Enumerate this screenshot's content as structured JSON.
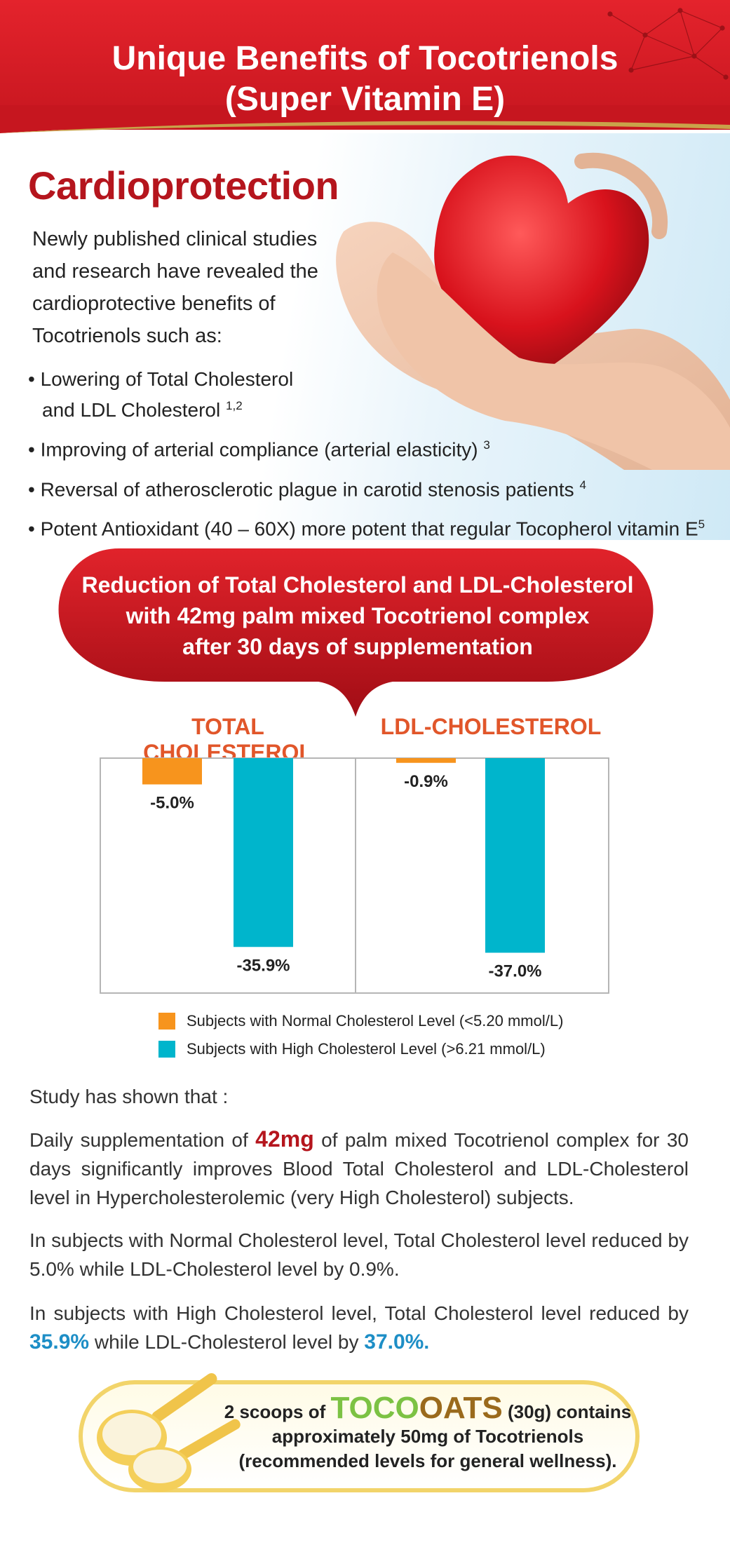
{
  "header": {
    "title_line1": "Unique Benefits of Tocotrienols",
    "title_line2": "(Super Vitamin E)"
  },
  "section": {
    "heading": "Cardioprotection",
    "intro": "Newly published clinical studies and research have revealed the cardioprotective benefits of Tocotrienols such as:",
    "bullets": [
      {
        "text": "• Lowering of Total Cholesterol",
        "text2": "and LDL Cholesterol",
        "ref": "1,2"
      },
      {
        "text": "• Improving of arterial compliance (arterial elasticity)",
        "ref": "3"
      },
      {
        "text": "• Reversal of atherosclerotic plague in carotid stenosis patients",
        "ref": "4"
      },
      {
        "text": "• Potent Antioxidant (40 – 60X) more potent that regular Tocopherol vitamin E",
        "ref": "5"
      }
    ]
  },
  "banner": {
    "line1": "Reduction of Total Cholesterol and LDL-Cholesterol",
    "line2": "with 42mg palm mixed Tocotrienol complex",
    "line3": "after 30 days of supplementation"
  },
  "chart_data": {
    "type": "bar",
    "panels": [
      {
        "title": "TOTAL CHOLESTEROL",
        "categories": [
          "Subjects with Normal Cholesterol Level (<5.20 mmol/L)",
          "Subjects with High Cholesterol Level (>6.21 mmol/L)"
        ],
        "values": [
          -5.0,
          -35.9
        ],
        "labels": [
          "-5.0%",
          "-35.9%"
        ]
      },
      {
        "title": "LDL-CHOLESTEROL",
        "categories": [
          "Subjects with Normal Cholesterol Level (<5.20 mmol/L)",
          "Subjects with High Cholesterol Level (>6.21 mmol/L)"
        ],
        "values": [
          -0.9,
          -37.0
        ],
        "labels": [
          "-0.9%",
          "-37.0%"
        ]
      }
    ],
    "series": [
      {
        "name": "Subjects with Normal Cholesterol Level (<5.20 mmol/L)",
        "color": "#f7941d"
      },
      {
        "name": "Subjects with High Cholesterol Level (>6.21 mmol/L)",
        "color": "#00b5cc"
      }
    ],
    "ylim": [
      -40,
      0
    ],
    "grid": false,
    "legend": "bottom"
  },
  "study": {
    "lead": "Study has shown that :",
    "p1_a": "Daily supplementation of ",
    "p1_highlight": "42mg",
    "p1_b": " of palm mixed Tocotrienol complex for 30 days significantly improves Blood Total Cholesterol and LDL-Cholesterol level in Hypercholesterolemic (very High Cholesterol) subjects.",
    "p2": "In subjects with Normal Cholesterol level, Total Cholesterol level reduced by 5.0% while LDL-Cholesterol level by 0.9%.",
    "p3_a": "In subjects with High Cholesterol level, Total Cholesterol level reduced by ",
    "p3_h1": "35.9%",
    "p3_b": " while LDL-Cholesterol level by ",
    "p3_h2": "37.0%",
    "p3_c": "."
  },
  "footer": {
    "pre": "2 scoops of ",
    "brand_a": "TOCO",
    "brand_b": "OATS",
    "post": " (30g) contains",
    "line2": "approximately 50mg of Tocotrienols",
    "line3": "(recommended levels for general wellness)."
  },
  "colors": {
    "brand_red": "#c6161f",
    "orange": "#f7941d",
    "teal": "#00b5cc",
    "title_orange": "#e1562a",
    "blue_accent": "#1d8ec6"
  }
}
